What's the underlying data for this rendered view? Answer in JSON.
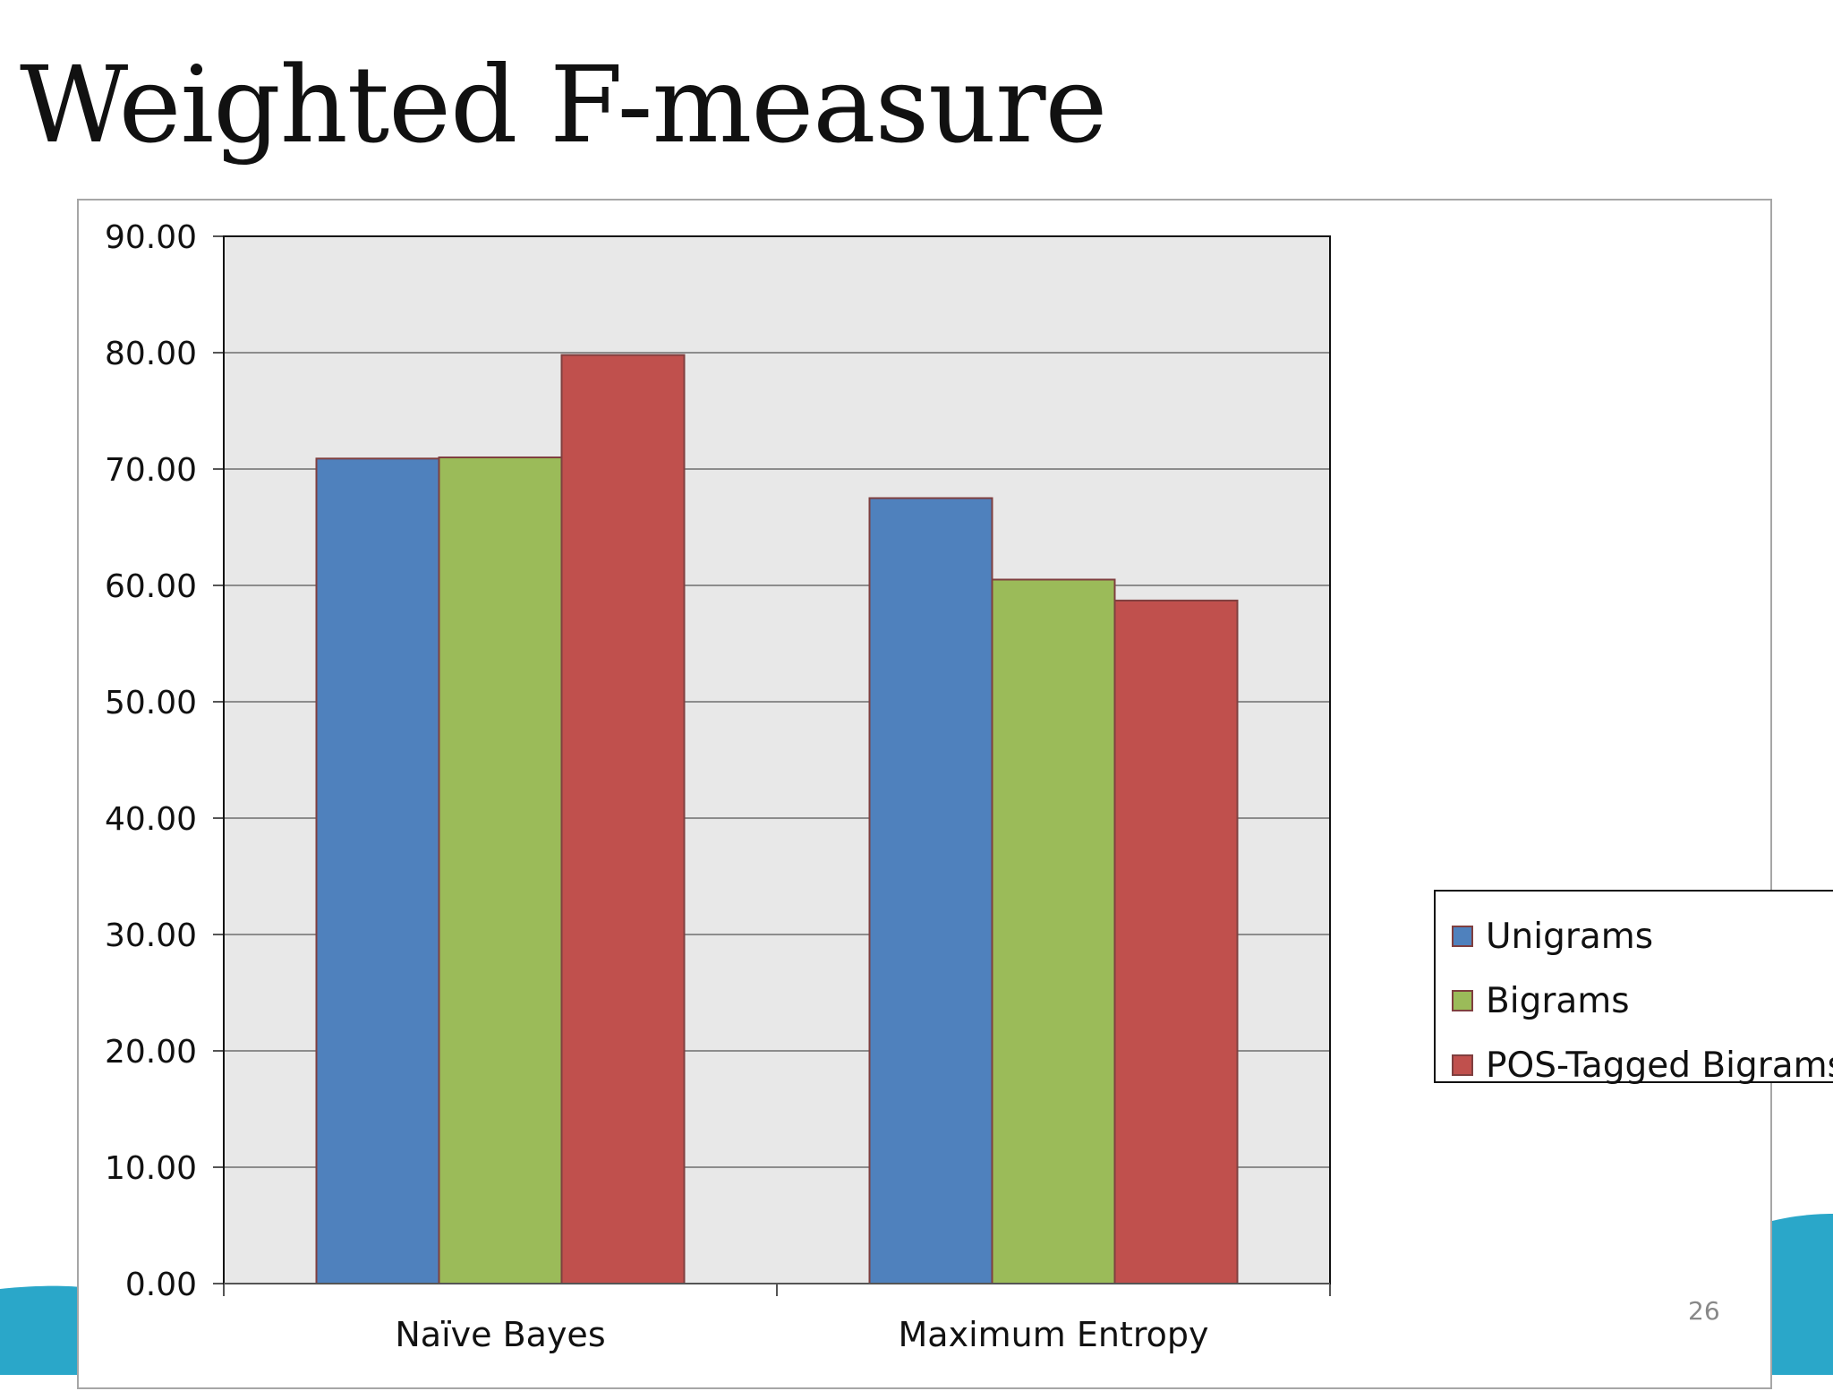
{
  "slide": {
    "title": "Weighted F-measure",
    "page_number": "26"
  },
  "colors": {
    "bar_outline": "#7f3f3f",
    "plot_background": "#e8e8e8",
    "gridline": "#8c8c8c",
    "accent_wave": "#2aa7c9"
  },
  "chart_data": {
    "type": "bar",
    "title": "",
    "xlabel": "",
    "ylabel": "",
    "categories": [
      "Naïve Bayes",
      "Maximum Entropy"
    ],
    "series": [
      {
        "name": "Unigrams",
        "color": "#4f81bd",
        "values": [
          70.9,
          67.5
        ]
      },
      {
        "name": "Bigrams",
        "color": "#9bbb59",
        "values": [
          71.0,
          60.5
        ]
      },
      {
        "name": "POS-Tagged Bigrams",
        "color": "#c0504d",
        "values": [
          79.8,
          58.7
        ]
      }
    ],
    "ylim": [
      0,
      90
    ],
    "yticks": [
      "0.00",
      "10.00",
      "20.00",
      "30.00",
      "40.00",
      "50.00",
      "60.00",
      "70.00",
      "80.00",
      "90.00"
    ],
    "grid": true,
    "legend": "right"
  }
}
